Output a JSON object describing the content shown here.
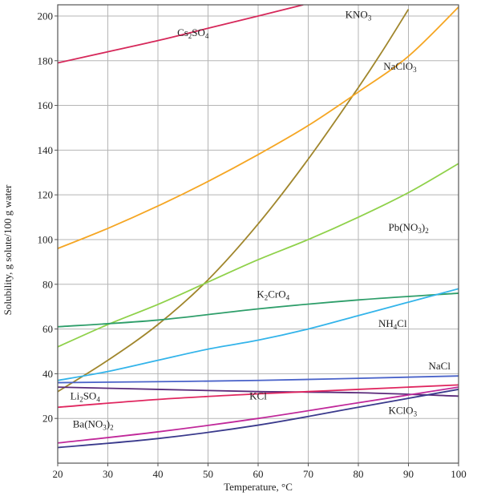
{
  "chart_data": {
    "type": "line",
    "title": "",
    "xlabel": "Temperature, °C",
    "ylabel": "Solubility, g solute/100 g water",
    "xlim": [
      20,
      100
    ],
    "ylim": [
      0,
      205
    ],
    "x_ticks": [
      "20",
      "30",
      "40",
      "50",
      "60",
      "70",
      "80",
      "90",
      "100"
    ],
    "y_ticks": [
      "20",
      "40",
      "60",
      "80",
      "100",
      "120",
      "140",
      "160",
      "180",
      "200"
    ],
    "grid": true,
    "legend": "none",
    "series": [
      {
        "name": "Cs2SO4",
        "label_parts": [
          [
            "Cs",
            ""
          ],
          [
            "2",
            "sub"
          ],
          [
            "SO",
            ""
          ],
          [
            "4",
            "sub"
          ]
        ],
        "color": "#d6285a",
        "x": [
          20,
          30,
          40,
          50,
          60,
          69
        ],
        "y": [
          179,
          184,
          189,
          194.5,
          200,
          205
        ]
      },
      {
        "name": "KNO3",
        "label_parts": [
          [
            "KNO",
            ""
          ],
          [
            "3",
            "sub"
          ]
        ],
        "color": "#a0862c",
        "x": [
          20,
          30,
          40,
          50,
          60,
          70,
          80,
          85,
          90
        ],
        "y": [
          32,
          46,
          62,
          82,
          107,
          136,
          168,
          185,
          203
        ]
      },
      {
        "name": "NaClO3",
        "label_parts": [
          [
            "NaClO",
            ""
          ],
          [
            "3",
            "sub"
          ]
        ],
        "color": "#f5a623",
        "x": [
          20,
          30,
          40,
          50,
          60,
          70,
          80,
          90,
          100
        ],
        "y": [
          96,
          105,
          115,
          126,
          138,
          151,
          166,
          182,
          204
        ]
      },
      {
        "name": "Pb(NO3)2",
        "label_parts": [
          [
            "Pb(NO",
            ""
          ],
          [
            "3",
            "sub"
          ],
          [
            ")",
            ""
          ],
          [
            "2",
            "sub"
          ]
        ],
        "color": "#8fd14a",
        "x": [
          20,
          30,
          40,
          50,
          60,
          70,
          80,
          90,
          100
        ],
        "y": [
          52,
          62,
          71,
          81,
          91,
          100,
          110,
          121,
          134
        ]
      },
      {
        "name": "K2CrO4",
        "label_parts": [
          [
            "K",
            ""
          ],
          [
            "2",
            "sub"
          ],
          [
            "CrO",
            ""
          ],
          [
            "4",
            "sub"
          ]
        ],
        "color": "#2e9e6a",
        "x": [
          20,
          40,
          60,
          80,
          100
        ],
        "y": [
          61,
          64,
          69,
          73,
          76
        ]
      },
      {
        "name": "NH4Cl",
        "label_parts": [
          [
            "NH",
            ""
          ],
          [
            "4",
            "sub"
          ],
          [
            "Cl",
            ""
          ]
        ],
        "color": "#33b4ea",
        "x": [
          20,
          30,
          40,
          50,
          60,
          70,
          80,
          90,
          100
        ],
        "y": [
          37,
          41,
          46,
          51,
          55,
          60,
          66,
          72,
          78
        ]
      },
      {
        "name": "NaCl",
        "label_parts": [
          [
            "NaCl",
            ""
          ]
        ],
        "color": "#4a63c9",
        "x": [
          20,
          60,
          100
        ],
        "y": [
          36,
          37,
          39
        ]
      },
      {
        "name": "Li2SO4",
        "label_parts": [
          [
            "Li",
            ""
          ],
          [
            "2",
            "sub"
          ],
          [
            "SO",
            ""
          ],
          [
            "4",
            "sub"
          ]
        ],
        "color": "#5a2a7a",
        "x": [
          20,
          40,
          60,
          80,
          100
        ],
        "y": [
          34,
          33,
          32,
          31.5,
          30
        ]
      },
      {
        "name": "KCl",
        "label_parts": [
          [
            "KCl",
            ""
          ]
        ],
        "color": "#e0265f",
        "x": [
          20,
          40,
          60,
          80,
          100
        ],
        "y": [
          25,
          28.5,
          31,
          33,
          35
        ]
      },
      {
        "name": "Ba(NO3)2",
        "label_parts": [
          [
            "Ba(NO",
            ""
          ],
          [
            "3",
            "sub"
          ],
          [
            ")",
            ""
          ],
          [
            "2",
            "sub"
          ]
        ],
        "color": "#c0289a",
        "x": [
          20,
          40,
          60,
          80,
          100
        ],
        "y": [
          9,
          14,
          20,
          27,
          34
        ]
      },
      {
        "name": "KClO3",
        "label_parts": [
          [
            "KClO",
            ""
          ],
          [
            "3",
            "sub"
          ]
        ],
        "color": "#3a3a8c",
        "x": [
          20,
          40,
          60,
          80,
          100
        ],
        "y": [
          7,
          11,
          17,
          25,
          33
        ]
      }
    ]
  }
}
